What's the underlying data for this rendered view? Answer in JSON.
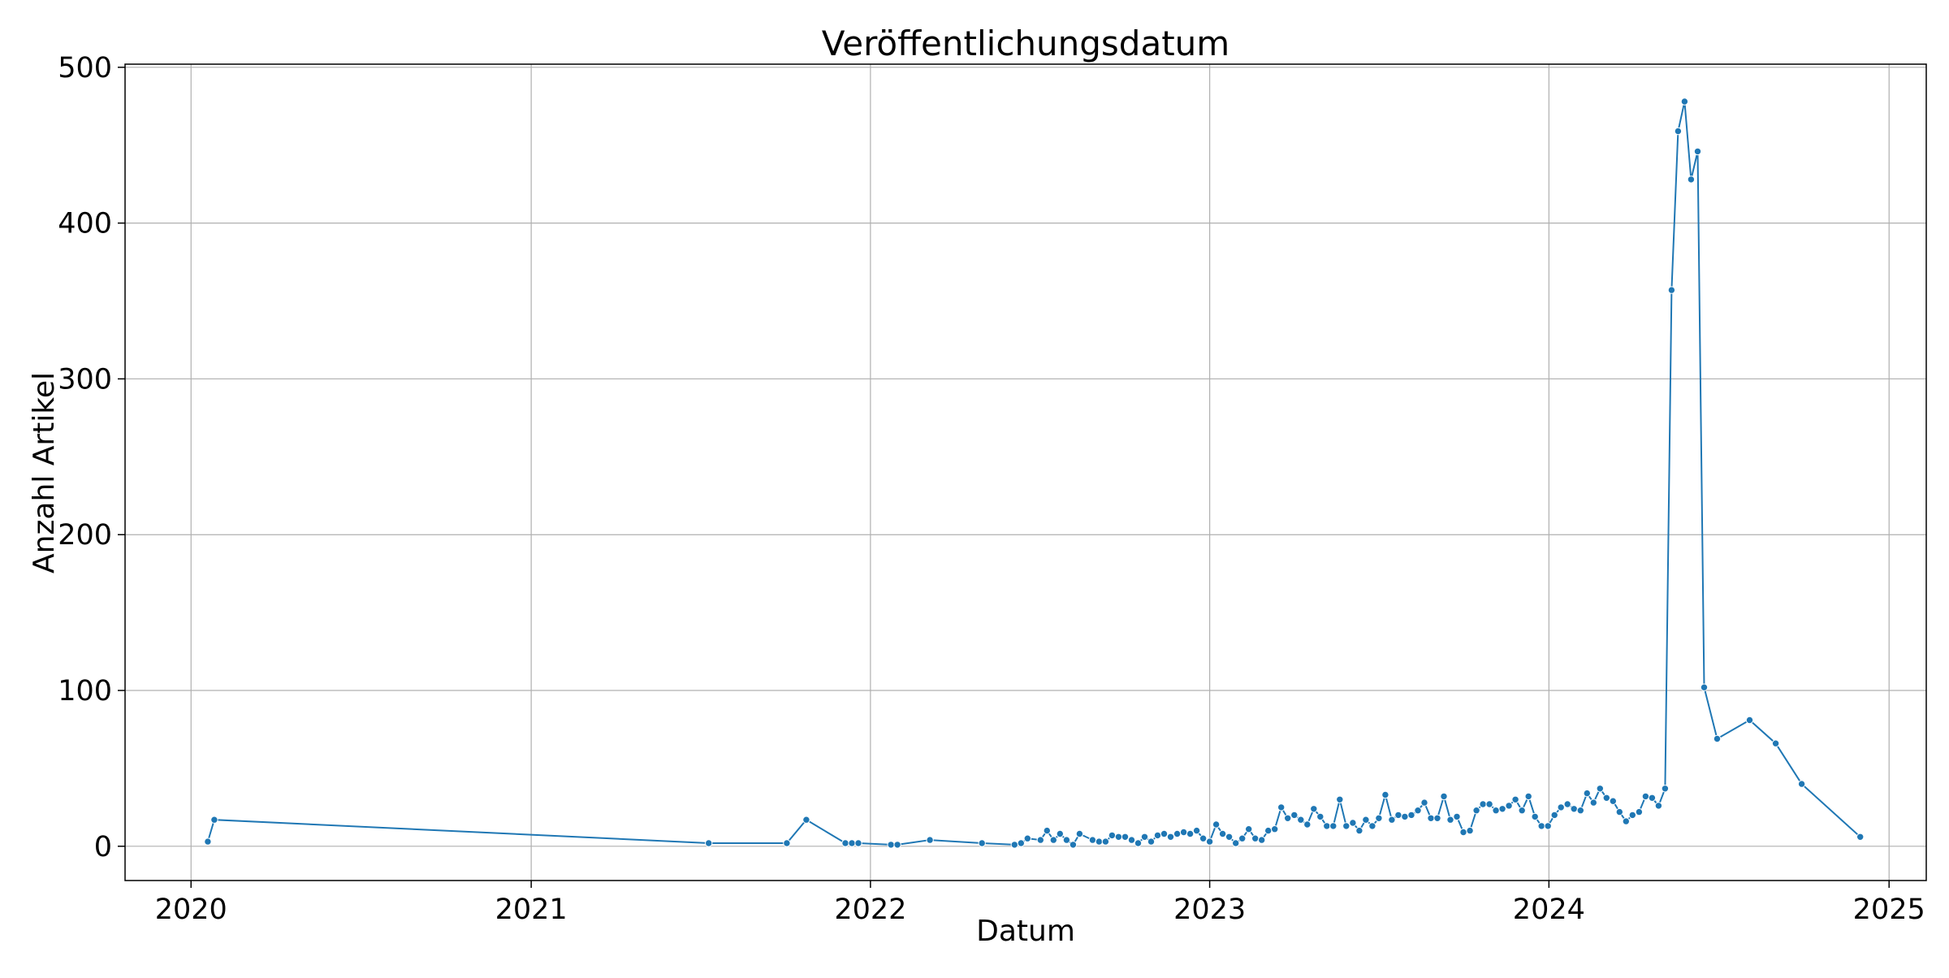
{
  "chart_data": {
    "type": "line",
    "title": "Veröffentlichungsdatum",
    "xlabel": "Datum",
    "ylabel": "Anzahl Artikel",
    "x_axis_type": "date",
    "xlim": [
      "2019-10-22",
      "2025-02-10"
    ],
    "ylim": [
      -22,
      502
    ],
    "x_ticks": [
      {
        "date": "2020-01-01",
        "label": "2020"
      },
      {
        "date": "2021-01-01",
        "label": "2021"
      },
      {
        "date": "2022-01-01",
        "label": "2022"
      },
      {
        "date": "2023-01-01",
        "label": "2023"
      },
      {
        "date": "2024-01-01",
        "label": "2024"
      },
      {
        "date": "2025-01-01",
        "label": "2025"
      }
    ],
    "y_ticks": [
      0,
      100,
      200,
      300,
      400,
      500
    ],
    "grid": true,
    "marker": "circle",
    "color": "#1f77b4",
    "series": [
      {
        "x": [
          "2020-01-19",
          "2020-01-26",
          "2021-07-11",
          "2021-10-03",
          "2021-10-24",
          "2021-12-05",
          "2021-12-12",
          "2021-12-19",
          "2022-01-23",
          "2022-01-30",
          "2022-03-06",
          "2022-05-01",
          "2022-06-05",
          "2022-06-12",
          "2022-06-19",
          "2022-07-03",
          "2022-07-10",
          "2022-07-17",
          "2022-07-24",
          "2022-07-31",
          "2022-08-07",
          "2022-08-14",
          "2022-08-28",
          "2022-09-04",
          "2022-09-11",
          "2022-09-18",
          "2022-09-25",
          "2022-10-02",
          "2022-10-09",
          "2022-10-16",
          "2022-10-23",
          "2022-10-30",
          "2022-11-06",
          "2022-11-13",
          "2022-11-20",
          "2022-11-27",
          "2022-12-04",
          "2022-12-11",
          "2022-12-18",
          "2022-12-25",
          "2023-01-01",
          "2023-01-08",
          "2023-01-15",
          "2023-01-22",
          "2023-01-29",
          "2023-02-05",
          "2023-02-12",
          "2023-02-19",
          "2023-02-26",
          "2023-03-05",
          "2023-03-12",
          "2023-03-19",
          "2023-03-26",
          "2023-04-02",
          "2023-04-09",
          "2023-04-16",
          "2023-04-23",
          "2023-04-30",
          "2023-05-07",
          "2023-05-14",
          "2023-05-21",
          "2023-05-28",
          "2023-06-04",
          "2023-06-11",
          "2023-06-18",
          "2023-06-25",
          "2023-07-02",
          "2023-07-09",
          "2023-07-16",
          "2023-07-23",
          "2023-07-30",
          "2023-08-06",
          "2023-08-13",
          "2023-08-20",
          "2023-08-27",
          "2023-09-03",
          "2023-09-10",
          "2023-09-17",
          "2023-09-24",
          "2023-10-01",
          "2023-10-08",
          "2023-10-15",
          "2023-10-22",
          "2023-10-29",
          "2023-11-05",
          "2023-11-12",
          "2023-11-19",
          "2023-11-26",
          "2023-12-03",
          "2023-12-10",
          "2023-12-17",
          "2023-12-24",
          "2023-12-31",
          "2024-01-07",
          "2024-01-14",
          "2024-01-21",
          "2024-01-28",
          "2024-02-04",
          "2024-02-11",
          "2024-02-18",
          "2024-02-25",
          "2024-03-03",
          "2024-03-10",
          "2024-03-17",
          "2024-03-24",
          "2024-03-31",
          "2024-04-07",
          "2024-04-14",
          "2024-04-21",
          "2024-04-28",
          "2024-05-05",
          "2024-05-12",
          "2024-05-19",
          "2024-05-26",
          "2024-06-02",
          "2024-06-09",
          "2024-06-16",
          "2024-06-30",
          "2024-08-04",
          "2024-09-01",
          "2024-09-29",
          "2024-12-01"
        ],
        "y": [
          3,
          17,
          2,
          2,
          17,
          2,
          2,
          2,
          1,
          1,
          4,
          2,
          1,
          2,
          5,
          4,
          10,
          4,
          8,
          4,
          1,
          8,
          4,
          3,
          3,
          7,
          6,
          6,
          4,
          2,
          6,
          3,
          7,
          8,
          6,
          8,
          9,
          8,
          10,
          5,
          3,
          14,
          8,
          6,
          2,
          5,
          11,
          5,
          4,
          10,
          11,
          25,
          18,
          20,
          17,
          14,
          24,
          19,
          13,
          13,
          30,
          13,
          15,
          10,
          17,
          13,
          18,
          33,
          17,
          20,
          19,
          20,
          23,
          28,
          18,
          18,
          32,
          17,
          19,
          9,
          10,
          23,
          27,
          27,
          23,
          24,
          26,
          30,
          23,
          32,
          19,
          13,
          13,
          20,
          25,
          27,
          24,
          23,
          34,
          28,
          37,
          31,
          29,
          22,
          16,
          20,
          22,
          32,
          31,
          26,
          37,
          357,
          459,
          478,
          428,
          446,
          102,
          69,
          81,
          66,
          40,
          6
        ]
      }
    ]
  }
}
